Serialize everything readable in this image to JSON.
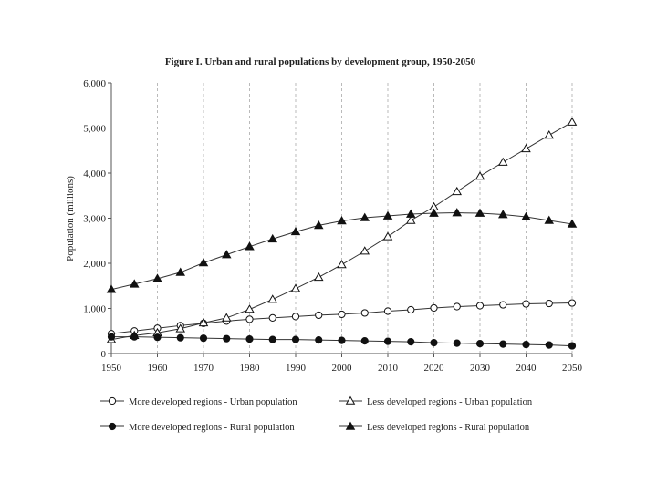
{
  "chart_data": {
    "type": "line",
    "title": "Figure I. Urban and rural populations by development group, 1950-2050",
    "xlabel": "",
    "ylabel": "Population (millions)",
    "xlim": [
      1950,
      2050
    ],
    "ylim": [
      0,
      6000
    ],
    "x_ticks": [
      "1950",
      "1960",
      "1970",
      "1980",
      "1990",
      "2000",
      "2010",
      "2020",
      "2030",
      "2040",
      "2050"
    ],
    "y_ticks": [
      "0",
      "1,000",
      "2,000",
      "3,000",
      "4,000",
      "5,000",
      "6,000"
    ],
    "x": [
      1950,
      1955,
      1960,
      1965,
      1970,
      1975,
      1980,
      1985,
      1990,
      1995,
      2000,
      2005,
      2010,
      2015,
      2020,
      2025,
      2030,
      2035,
      2040,
      2045,
      2050
    ],
    "series": [
      {
        "name": "More developed regions - Urban population",
        "marker": "circle-open",
        "values": [
          440,
          500,
          560,
          620,
          670,
          720,
          760,
          790,
          820,
          850,
          870,
          900,
          940,
          970,
          1010,
          1040,
          1060,
          1080,
          1100,
          1110,
          1120
        ]
      },
      {
        "name": "Less developed regions - Urban population",
        "marker": "triangle-open",
        "values": [
          310,
          400,
          460,
          550,
          680,
          790,
          980,
          1200,
          1440,
          1690,
          1970,
          2270,
          2590,
          2950,
          3250,
          3590,
          3930,
          4240,
          4540,
          4840,
          5130
        ]
      },
      {
        "name": "More developed regions - Rural population",
        "marker": "circle-filled",
        "values": [
          370,
          370,
          360,
          350,
          340,
          330,
          320,
          310,
          310,
          300,
          290,
          280,
          270,
          260,
          240,
          230,
          220,
          210,
          200,
          190,
          170
        ]
      },
      {
        "name": "Less developed regions - Rural population",
        "marker": "triangle-filled",
        "values": [
          1420,
          1540,
          1660,
          1800,
          2010,
          2190,
          2370,
          2540,
          2700,
          2840,
          2940,
          3010,
          3050,
          3090,
          3110,
          3120,
          3110,
          3080,
          3030,
          2950,
          2870
        ]
      }
    ],
    "legend_position": "bottom",
    "grid": "vertical dashed",
    "colors": {
      "line": "#333333",
      "marker": "#111111",
      "axis": "#555555",
      "grid": "#aaaaaa"
    }
  }
}
